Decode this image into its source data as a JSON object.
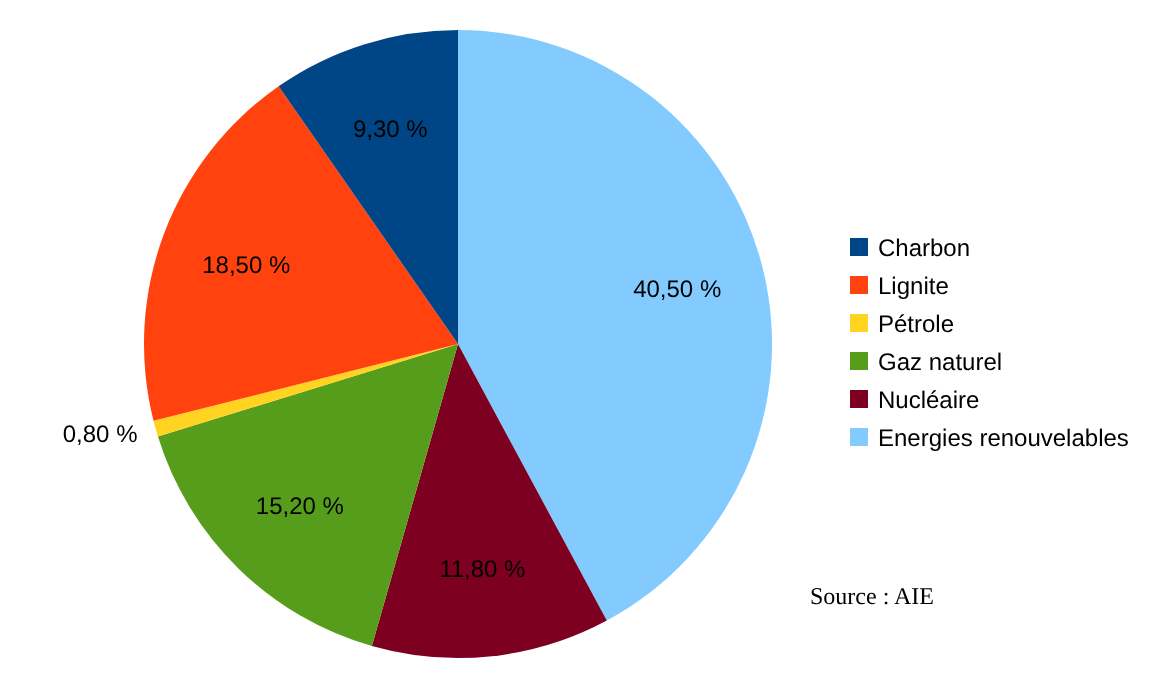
{
  "chart_data": {
    "type": "pie",
    "categories": [
      "Charbon",
      "Lignite",
      "Pétrole",
      "Gaz naturel",
      "Nucléaire",
      "Energies renouvelables"
    ],
    "values": [
      9.3,
      18.5,
      0.8,
      15.2,
      11.8,
      40.5
    ],
    "value_labels": [
      "9,30 %",
      "18,50 %",
      "0,80 %",
      "15,20 %",
      "11,80 %",
      "40,50 %"
    ],
    "colors": [
      "#004586",
      "#ff420e",
      "#ffd320",
      "#579d1c",
      "#7e0021",
      "#83caff"
    ],
    "legend": "right",
    "annotations": [
      "Source : AIE"
    ]
  }
}
